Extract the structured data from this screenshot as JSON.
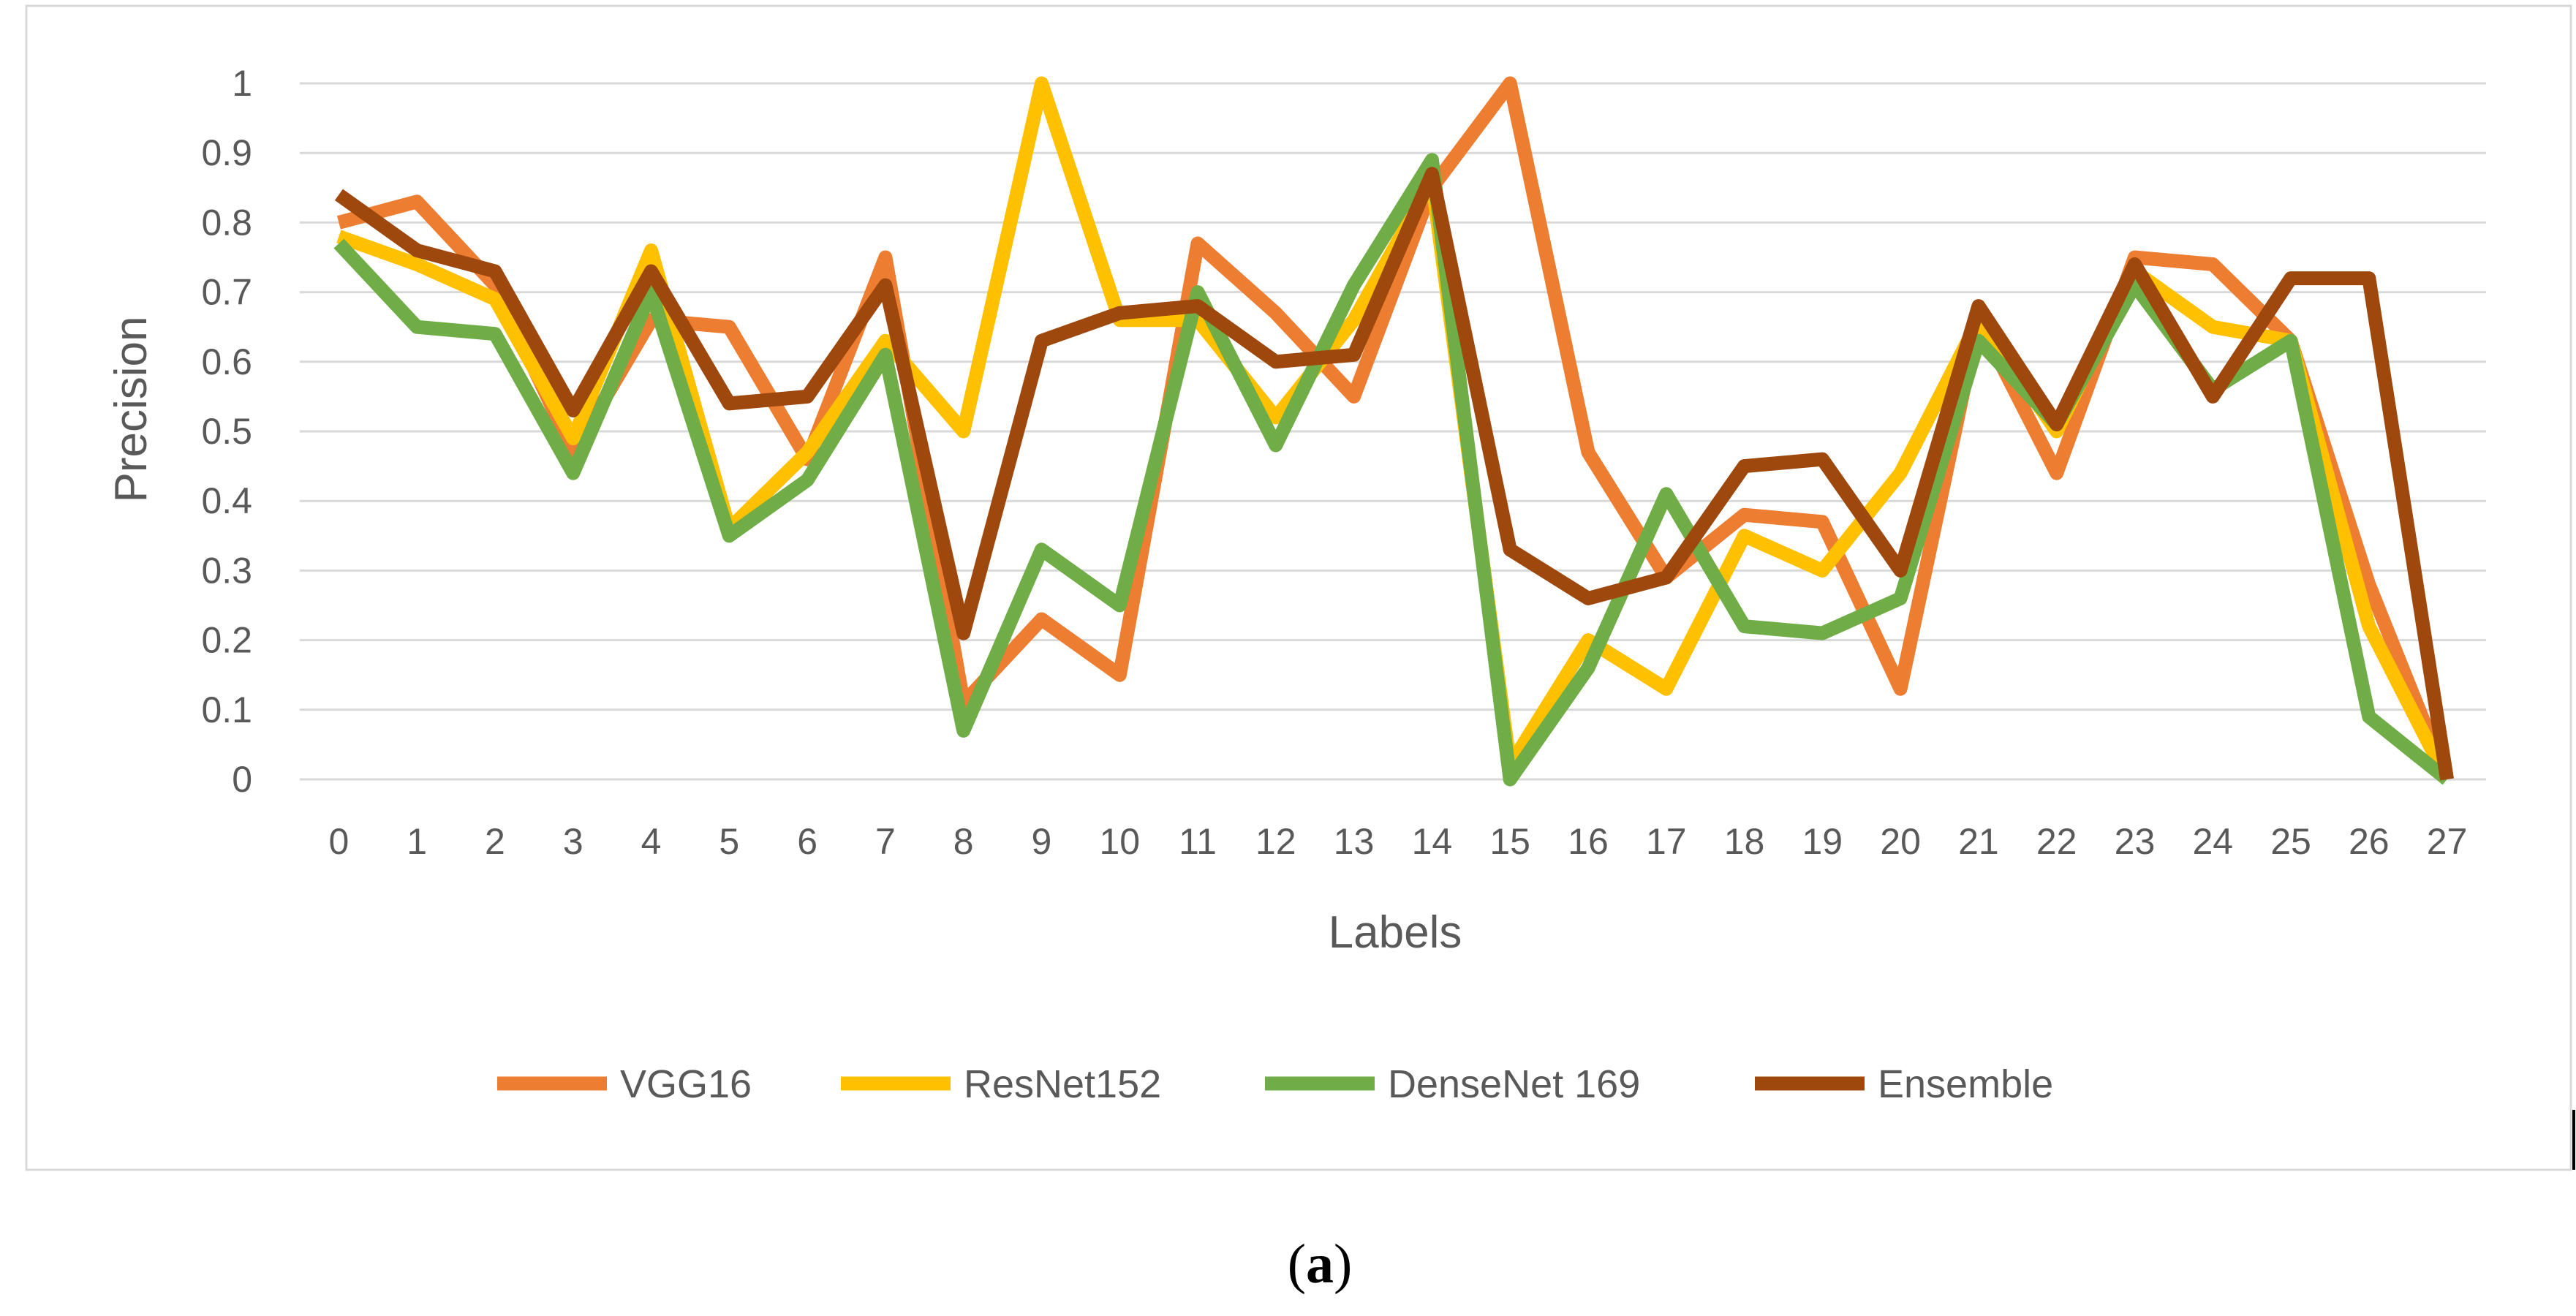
{
  "chart_data": {
    "type": "line",
    "title": "",
    "xlabel": "Labels",
    "ylabel": "Precision",
    "ylim": [
      0,
      1
    ],
    "y_ticks": [
      "0",
      "0.1",
      "0.2",
      "0.3",
      "0.4",
      "0.5",
      "0.6",
      "0.7",
      "0.8",
      "0.9",
      "1"
    ],
    "categories": [
      "0",
      "1",
      "2",
      "3",
      "4",
      "5",
      "6",
      "7",
      "8",
      "9",
      "10",
      "11",
      "12",
      "13",
      "14",
      "15",
      "16",
      "17",
      "18",
      "19",
      "20",
      "21",
      "22",
      "23",
      "24",
      "25",
      "26",
      "27"
    ],
    "grid": true,
    "legend_position": "bottom",
    "series": [
      {
        "name": "VGG16",
        "color": "#ED7D31",
        "values": [
          0.8,
          0.83,
          0.71,
          0.47,
          0.66,
          0.65,
          0.46,
          0.75,
          0.11,
          0.23,
          0.15,
          0.77,
          0.67,
          0.55,
          0.85,
          1.0,
          0.47,
          0.29,
          0.38,
          0.37,
          0.13,
          0.66,
          0.44,
          0.75,
          0.74,
          0.63,
          0.28,
          0.0
        ]
      },
      {
        "name": "ResNet152",
        "color": "#FFC000",
        "values": [
          0.78,
          0.74,
          0.69,
          0.49,
          0.76,
          0.36,
          0.47,
          0.63,
          0.5,
          1.0,
          0.66,
          0.66,
          0.52,
          0.66,
          0.86,
          0.02,
          0.2,
          0.13,
          0.35,
          0.3,
          0.44,
          0.66,
          0.5,
          0.73,
          0.65,
          0.63,
          0.22,
          0.0
        ]
      },
      {
        "name": "DenseNet 169",
        "color": "#70AD47",
        "values": [
          0.77,
          0.65,
          0.64,
          0.44,
          0.7,
          0.35,
          0.43,
          0.61,
          0.07,
          0.33,
          0.25,
          0.7,
          0.48,
          0.71,
          0.89,
          0.0,
          0.16,
          0.41,
          0.22,
          0.21,
          0.26,
          0.63,
          0.51,
          0.71,
          0.56,
          0.63,
          0.09,
          0.0
        ]
      },
      {
        "name": "Ensemble",
        "color": "#9E480E",
        "values": [
          0.84,
          0.76,
          0.73,
          0.53,
          0.73,
          0.54,
          0.55,
          0.71,
          0.21,
          0.63,
          0.67,
          0.68,
          0.6,
          0.61,
          0.87,
          0.33,
          0.26,
          0.29,
          0.45,
          0.46,
          0.3,
          0.68,
          0.51,
          0.74,
          0.55,
          0.72,
          0.72,
          0.0
        ]
      }
    ]
  },
  "caption": {
    "open": "(",
    "letter": "a",
    "close": ")"
  }
}
